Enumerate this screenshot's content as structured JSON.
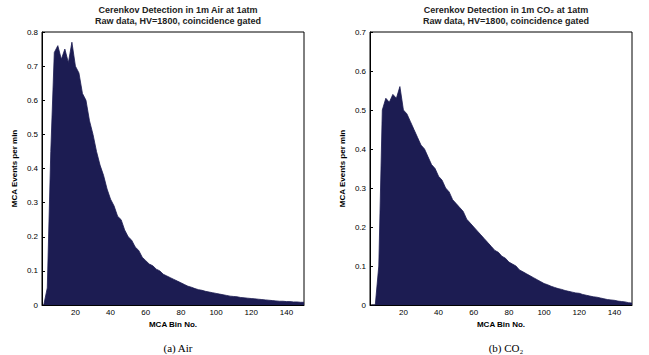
{
  "chart_data": [
    {
      "type": "area",
      "title": "Cerenkov Detection in 1m Air at 1atm",
      "subtitle": "Raw data, HV=1800, coincidence gated",
      "caption": "(a) Air",
      "x_label": "MCA Bin No.",
      "y_label": "MCA Events per min",
      "color": "#1c1c52",
      "grid": false,
      "xlim": [
        1,
        150
      ],
      "xticks": [
        20,
        40,
        60,
        80,
        100,
        120,
        140
      ],
      "ylim": [
        0,
        0.8
      ],
      "yticks": [
        0,
        0.1,
        0.2,
        0.3,
        0.4,
        0.5,
        0.6,
        0.7,
        0.8
      ],
      "x": [
        2,
        4,
        6,
        8,
        10,
        12,
        14,
        16,
        18,
        20,
        22,
        24,
        26,
        28,
        30,
        32,
        34,
        36,
        38,
        40,
        42,
        44,
        46,
        48,
        50,
        52,
        54,
        56,
        58,
        60,
        62,
        64,
        66,
        68,
        70,
        72,
        74,
        76,
        78,
        80,
        82,
        84,
        86,
        88,
        90,
        92,
        94,
        96,
        98,
        100,
        102,
        104,
        106,
        108,
        110,
        112,
        114,
        116,
        118,
        120,
        122,
        124,
        126,
        128,
        130,
        132,
        134,
        136,
        138,
        140,
        142,
        144,
        146,
        148,
        150
      ],
      "values": [
        0,
        0.05,
        0.45,
        0.74,
        0.76,
        0.72,
        0.75,
        0.71,
        0.77,
        0.7,
        0.68,
        0.62,
        0.6,
        0.54,
        0.5,
        0.45,
        0.41,
        0.38,
        0.34,
        0.31,
        0.29,
        0.26,
        0.25,
        0.22,
        0.2,
        0.19,
        0.17,
        0.16,
        0.14,
        0.13,
        0.12,
        0.115,
        0.105,
        0.1,
        0.09,
        0.085,
        0.08,
        0.075,
        0.07,
        0.065,
        0.06,
        0.055,
        0.052,
        0.048,
        0.045,
        0.043,
        0.04,
        0.038,
        0.036,
        0.034,
        0.032,
        0.03,
        0.028,
        0.026,
        0.025,
        0.024,
        0.022,
        0.021,
        0.02,
        0.019,
        0.018,
        0.017,
        0.016,
        0.015,
        0.014,
        0.013,
        0.012,
        0.011,
        0.011,
        0.01,
        0.01,
        0.009,
        0.009,
        0.008,
        0.008
      ]
    },
    {
      "type": "area",
      "title": "Cerenkov Detection in 1m CO₂ at 1atm",
      "subtitle": "Raw data, HV=1800, coincidence gated",
      "caption": "(b) CO₂",
      "x_label": "MCA Bin No.",
      "y_label": "MCA Events per min",
      "color": "#1c1c52",
      "grid": false,
      "xlim": [
        1,
        150
      ],
      "xticks": [
        20,
        40,
        60,
        80,
        100,
        120,
        140
      ],
      "ylim": [
        0,
        0.7
      ],
      "yticks": [
        0,
        0.1,
        0.2,
        0.3,
        0.4,
        0.5,
        0.6,
        0.7
      ],
      "x": [
        2,
        4,
        6,
        8,
        10,
        12,
        14,
        16,
        18,
        20,
        22,
        24,
        26,
        28,
        30,
        32,
        34,
        36,
        38,
        40,
        42,
        44,
        46,
        48,
        50,
        52,
        54,
        56,
        58,
        60,
        62,
        64,
        66,
        68,
        70,
        72,
        74,
        76,
        78,
        80,
        82,
        84,
        86,
        88,
        90,
        92,
        94,
        96,
        98,
        100,
        102,
        104,
        106,
        108,
        110,
        112,
        114,
        116,
        118,
        120,
        122,
        124,
        126,
        128,
        130,
        132,
        134,
        136,
        138,
        140,
        142,
        144,
        146,
        148,
        150
      ],
      "values": [
        0,
        0,
        0.1,
        0.5,
        0.53,
        0.52,
        0.54,
        0.53,
        0.56,
        0.5,
        0.49,
        0.47,
        0.45,
        0.43,
        0.41,
        0.4,
        0.38,
        0.36,
        0.35,
        0.33,
        0.32,
        0.3,
        0.29,
        0.27,
        0.26,
        0.25,
        0.24,
        0.22,
        0.21,
        0.2,
        0.19,
        0.18,
        0.17,
        0.16,
        0.15,
        0.14,
        0.135,
        0.125,
        0.12,
        0.11,
        0.105,
        0.1,
        0.09,
        0.085,
        0.08,
        0.075,
        0.07,
        0.065,
        0.06,
        0.055,
        0.052,
        0.048,
        0.045,
        0.042,
        0.04,
        0.037,
        0.035,
        0.033,
        0.031,
        0.03,
        0.027,
        0.025,
        0.023,
        0.021,
        0.02,
        0.018,
        0.016,
        0.014,
        0.013,
        0.012,
        0.01,
        0.009,
        0.008,
        0.006,
        0.005
      ]
    }
  ]
}
